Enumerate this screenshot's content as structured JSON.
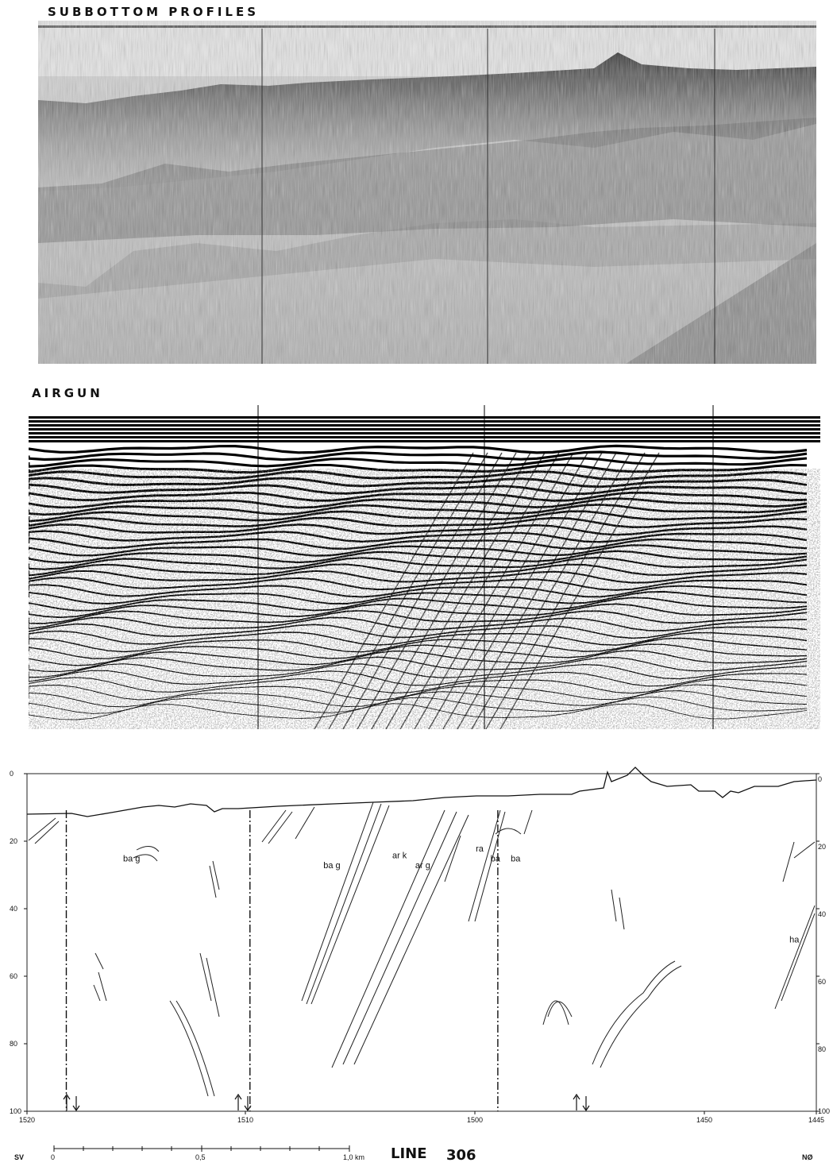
{
  "panels": {
    "subbottom_title": "SUBBOTTOM PROFILES",
    "airgun_title": "AIRGUN"
  },
  "interpretation": {
    "x_ticks": [
      "1520",
      "1510",
      "1500",
      "1450",
      "1445"
    ],
    "left_depth_ticks": [
      "0",
      "20",
      "40",
      "60",
      "80",
      "100"
    ],
    "right_depth_ticks": [
      "0",
      "20",
      "40",
      "60",
      "80",
      "100"
    ],
    "unit_labels": [
      {
        "text": "ba g",
        "x": 1515.6,
        "depth": 26
      },
      {
        "text": "ba g",
        "x": 1506.6,
        "depth": 28
      },
      {
        "text": "ar k",
        "x": 1503.6,
        "depth": 25
      },
      {
        "text": "ar g",
        "x": 1502.6,
        "depth": 28
      },
      {
        "text": "ra",
        "x": 1499.8,
        "depth": 23
      },
      {
        "text": "ba",
        "x": 1496.6,
        "depth": 26
      },
      {
        "text": "ba",
        "x": 1492.2,
        "depth": 26
      },
      {
        "text": "ha",
        "x": 1446.2,
        "depth": 50
      }
    ],
    "fault_positions": [
      1518.2,
      1509.8,
      1495.0
    ]
  },
  "scale_bar": {
    "left_label": "SV",
    "right_label": "NØ",
    "ticks": [
      "0",
      "0,5",
      "1,0 km"
    ],
    "line_label_prefix": "LINE",
    "line_number": "306"
  }
}
